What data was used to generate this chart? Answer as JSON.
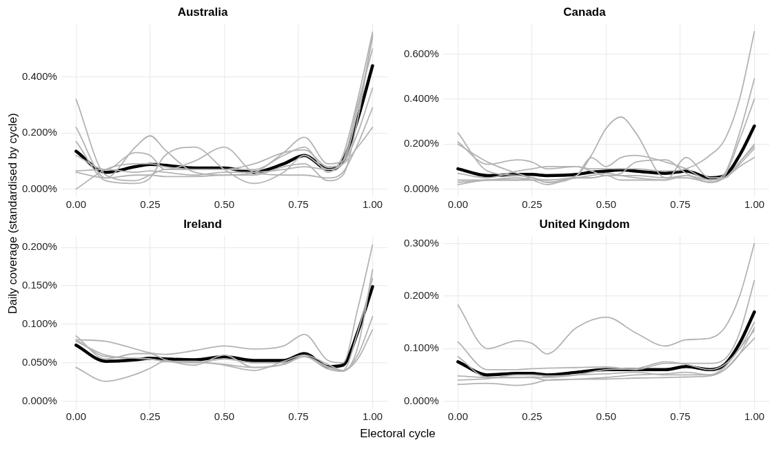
{
  "chart_data": [
    {
      "type": "line",
      "title": "Australia",
      "ylabel": "Daily coverage (standardised by cycle)",
      "grid": true,
      "xlim": [
        -0.05,
        1.05
      ],
      "ylim": [
        -0.028,
        0.59
      ],
      "xticks": [
        {
          "value": 0,
          "label": "0.00"
        },
        {
          "value": 0.25,
          "label": "0.25"
        },
        {
          "value": 0.5,
          "label": "0.50"
        },
        {
          "value": 0.75,
          "label": "0.75"
        },
        {
          "value": 1,
          "label": "1.00"
        }
      ],
      "yticks": [
        {
          "value": 0,
          "label": "0.000%"
        },
        {
          "value": 0.2,
          "label": "0.200%"
        },
        {
          "value": 0.4,
          "label": "0.400%"
        }
      ],
      "x": [
        0,
        0.1,
        0.2,
        0.25,
        0.3,
        0.4,
        0.5,
        0.6,
        0.7,
        0.77,
        0.85,
        0.9,
        0.95,
        1
      ],
      "series": [
        {
          "color": "#b3b3b3",
          "values": [
            0.32,
            0.05,
            0.03,
            0.05,
            0.07,
            0.07,
            0.07,
            0.07,
            0.12,
            0.15,
            0.06,
            0.12,
            0.32,
            0.56
          ]
        },
        {
          "color": "#b3b3b3",
          "values": [
            0.22,
            0.04,
            0.15,
            0.19,
            0.14,
            0.06,
            0.05,
            0.06,
            0.13,
            0.185,
            0.09,
            0.1,
            0.28,
            0.54
          ]
        },
        {
          "color": "#b3b3b3",
          "values": [
            0.17,
            0.03,
            0.02,
            0.04,
            0.12,
            0.15,
            0.07,
            0.02,
            0.06,
            0.12,
            0.07,
            0.09,
            0.2,
            0.36
          ]
        },
        {
          "color": "#b3b3b3",
          "values": [
            0.12,
            0.07,
            0.13,
            0.12,
            0.07,
            0.1,
            0.15,
            0.06,
            0.05,
            0.05,
            0.04,
            0.06,
            0.16,
            0.29
          ]
        },
        {
          "color": "#b3b3b3",
          "values": [
            0.0,
            0.07,
            0.09,
            0.09,
            0.08,
            0.07,
            0.07,
            0.09,
            0.13,
            0.14,
            0.08,
            0.09,
            0.15,
            0.22
          ]
        },
        {
          "color": "#b3b3b3",
          "values": [
            0.06,
            0.04,
            0.05,
            0.05,
            0.045,
            0.045,
            0.05,
            0.05,
            0.08,
            0.09,
            0.03,
            0.05,
            0.25,
            0.55
          ]
        },
        {
          "color": "#b3b3b3",
          "values": [
            0.065,
            0.07,
            0.06,
            0.065,
            0.06,
            0.05,
            0.06,
            0.06,
            0.07,
            0.08,
            0.07,
            0.1,
            0.3,
            0.5
          ]
        },
        {
          "color": "#000000",
          "values": [
            0.135,
            0.06,
            0.08,
            0.088,
            0.085,
            0.075,
            0.075,
            0.06,
            0.09,
            0.12,
            0.07,
            0.1,
            0.25,
            0.44
          ]
        }
      ]
    },
    {
      "type": "line",
      "title": "Canada",
      "grid": true,
      "xlim": [
        -0.05,
        1.05
      ],
      "ylim": [
        -0.035,
        0.735
      ],
      "xticks": [
        {
          "value": 0,
          "label": "0.00"
        },
        {
          "value": 0.25,
          "label": "0.25"
        },
        {
          "value": 0.5,
          "label": "0.50"
        },
        {
          "value": 0.75,
          "label": "0.75"
        },
        {
          "value": 1,
          "label": "1.00"
        }
      ],
      "yticks": [
        {
          "value": 0,
          "label": "0.000%"
        },
        {
          "value": 0.2,
          "label": "0.200%"
        },
        {
          "value": 0.4,
          "label": "0.400%"
        },
        {
          "value": 0.6,
          "label": "0.600%"
        }
      ],
      "x": [
        0,
        0.1,
        0.2,
        0.25,
        0.3,
        0.4,
        0.45,
        0.5,
        0.55,
        0.6,
        0.7,
        0.77,
        0.85,
        0.9,
        0.95,
        1
      ],
      "series": [
        {
          "color": "#b3b3b3",
          "values": [
            0.2,
            0.12,
            0.07,
            0.05,
            0.04,
            0.06,
            0.15,
            0.27,
            0.32,
            0.25,
            0.05,
            0.06,
            0.04,
            0.05,
            0.12,
            0.2
          ]
        },
        {
          "color": "#b3b3b3",
          "values": [
            0.21,
            0.11,
            0.13,
            0.12,
            0.09,
            0.1,
            0.09,
            0.09,
            0.09,
            0.09,
            0.08,
            0.09,
            0.15,
            0.22,
            0.4,
            0.7
          ]
        },
        {
          "color": "#b3b3b3",
          "values": [
            0.25,
            0.08,
            0.06,
            0.05,
            0.03,
            0.06,
            0.14,
            0.1,
            0.14,
            0.15,
            0.12,
            0.09,
            0.04,
            0.07,
            0.25,
            0.49
          ]
        },
        {
          "color": "#b3b3b3",
          "values": [
            0.07,
            0.05,
            0.08,
            0.09,
            0.1,
            0.1,
            0.08,
            0.06,
            0.07,
            0.12,
            0.13,
            0.07,
            0.03,
            0.06,
            0.22,
            0.4
          ]
        },
        {
          "color": "#b3b3b3",
          "values": [
            0.04,
            0.04,
            0.04,
            0.05,
            0.03,
            0.05,
            0.06,
            0.07,
            0.06,
            0.05,
            0.04,
            0.14,
            0.05,
            0.05,
            0.12,
            0.19
          ]
        },
        {
          "color": "#b3b3b3",
          "values": [
            0.02,
            0.04,
            0.04,
            0.04,
            0.04,
            0.05,
            0.05,
            0.06,
            0.04,
            0.04,
            0.04,
            0.06,
            0.03,
            0.05,
            0.1,
            0.14
          ]
        },
        {
          "color": "#b3b3b3",
          "values": [
            0.03,
            0.04,
            0.05,
            0.04,
            0.02,
            0.05,
            0.05,
            0.06,
            0.06,
            0.06,
            0.05,
            0.05,
            0.03,
            0.05,
            0.11,
            0.18
          ]
        },
        {
          "color": "#000000",
          "values": [
            0.09,
            0.06,
            0.065,
            0.065,
            0.06,
            0.065,
            0.075,
            0.08,
            0.085,
            0.08,
            0.07,
            0.08,
            0.05,
            0.06,
            0.15,
            0.28
          ]
        }
      ]
    },
    {
      "type": "line",
      "title": "Ireland",
      "xlabel": "Electoral cycle",
      "grid": true,
      "xlim": [
        -0.05,
        1.05
      ],
      "ylim": [
        -0.01,
        0.215
      ],
      "xticks": [
        {
          "value": 0,
          "label": "0.00"
        },
        {
          "value": 0.25,
          "label": "0.25"
        },
        {
          "value": 0.5,
          "label": "0.50"
        },
        {
          "value": 0.75,
          "label": "0.75"
        },
        {
          "value": 1,
          "label": "1.00"
        }
      ],
      "yticks": [
        {
          "value": 0,
          "label": "0.000%"
        },
        {
          "value": 0.05,
          "label": "0.050%"
        },
        {
          "value": 0.1,
          "label": "0.100%"
        },
        {
          "value": 0.15,
          "label": "0.150%"
        },
        {
          "value": 0.2,
          "label": "0.200%"
        }
      ],
      "x": [
        0,
        0.1,
        0.2,
        0.25,
        0.3,
        0.4,
        0.5,
        0.6,
        0.7,
        0.77,
        0.85,
        0.9,
        0.95,
        1
      ],
      "series": [
        {
          "color": "#b3b3b3",
          "values": [
            0.08,
            0.078,
            0.068,
            0.063,
            0.061,
            0.066,
            0.072,
            0.068,
            0.072,
            0.087,
            0.053,
            0.05,
            0.12,
            0.203
          ]
        },
        {
          "color": "#b3b3b3",
          "values": [
            0.044,
            0.026,
            0.035,
            0.043,
            0.052,
            0.051,
            0.048,
            0.044,
            0.048,
            0.058,
            0.042,
            0.039,
            0.07,
            0.171
          ]
        },
        {
          "color": "#b3b3b3",
          "values": [
            0.085,
            0.055,
            0.062,
            0.062,
            0.054,
            0.047,
            0.06,
            0.044,
            0.048,
            0.058,
            0.044,
            0.04,
            0.06,
            0.11
          ]
        },
        {
          "color": "#b3b3b3",
          "values": [
            0.08,
            0.058,
            0.056,
            0.055,
            0.052,
            0.052,
            0.047,
            0.04,
            0.052,
            0.06,
            0.048,
            0.04,
            0.055,
            0.093
          ]
        },
        {
          "color": "#b3b3b3",
          "values": [
            0.078,
            0.06,
            0.056,
            0.055,
            0.052,
            0.05,
            0.055,
            0.05,
            0.05,
            0.058,
            0.045,
            0.04,
            0.09,
            0.16
          ]
        },
        {
          "color": "#000000",
          "values": [
            0.073,
            0.052,
            0.054,
            0.056,
            0.055,
            0.054,
            0.058,
            0.053,
            0.053,
            0.062,
            0.045,
            0.047,
            0.09,
            0.149
          ]
        }
      ]
    },
    {
      "type": "line",
      "title": "United Kingdom",
      "grid": true,
      "xlim": [
        -0.05,
        1.05
      ],
      "ylim": [
        -0.015,
        0.315
      ],
      "xticks": [
        {
          "value": 0,
          "label": "0.00"
        },
        {
          "value": 0.25,
          "label": "0.25"
        },
        {
          "value": 0.5,
          "label": "0.50"
        },
        {
          "value": 0.75,
          "label": "0.75"
        },
        {
          "value": 1,
          "label": "1.00"
        }
      ],
      "yticks": [
        {
          "value": 0,
          "label": "0.000%"
        },
        {
          "value": 0.1,
          "label": "0.100%"
        },
        {
          "value": 0.2,
          "label": "0.200%"
        },
        {
          "value": 0.3,
          "label": "0.300%"
        }
      ],
      "x": [
        0,
        0.1,
        0.2,
        0.25,
        0.3,
        0.4,
        0.5,
        0.6,
        0.7,
        0.77,
        0.85,
        0.9,
        0.95,
        1
      ],
      "series": [
        {
          "color": "#b3b3b3",
          "values": [
            0.183,
            0.1,
            0.115,
            0.11,
            0.09,
            0.14,
            0.16,
            0.13,
            0.105,
            0.117,
            0.12,
            0.14,
            0.2,
            0.3
          ]
        },
        {
          "color": "#b3b3b3",
          "values": [
            0.113,
            0.06,
            0.06,
            0.062,
            0.063,
            0.064,
            0.065,
            0.06,
            0.072,
            0.072,
            0.072,
            0.08,
            0.13,
            0.23
          ]
        },
        {
          "color": "#b3b3b3",
          "values": [
            0.085,
            0.045,
            0.045,
            0.046,
            0.045,
            0.05,
            0.06,
            0.062,
            0.075,
            0.07,
            0.06,
            0.07,
            0.1,
            0.15
          ]
        },
        {
          "color": "#b3b3b3",
          "values": [
            0.048,
            0.045,
            0.045,
            0.045,
            0.04,
            0.042,
            0.045,
            0.05,
            0.052,
            0.055,
            0.05,
            0.06,
            0.09,
            0.14
          ]
        },
        {
          "color": "#b3b3b3",
          "values": [
            0.032,
            0.034,
            0.03,
            0.033,
            0.04,
            0.042,
            0.042,
            0.044,
            0.045,
            0.046,
            0.048,
            0.06,
            0.09,
            0.12
          ]
        },
        {
          "color": "#b3b3b3",
          "values": [
            0.04,
            0.043,
            0.05,
            0.05,
            0.048,
            0.05,
            0.052,
            0.055,
            0.05,
            0.05,
            0.05,
            0.065,
            0.1,
            0.135
          ]
        },
        {
          "color": "#000000",
          "values": [
            0.075,
            0.05,
            0.053,
            0.053,
            0.05,
            0.055,
            0.06,
            0.06,
            0.06,
            0.066,
            0.06,
            0.07,
            0.11,
            0.17
          ]
        }
      ]
    }
  ]
}
